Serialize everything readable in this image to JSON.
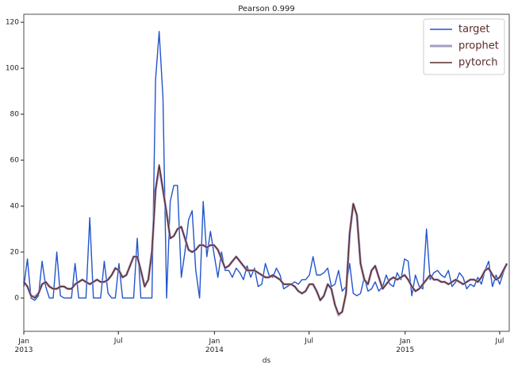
{
  "chart_data": {
    "type": "line",
    "title": "Pearson 0.999",
    "xlabel": "ds",
    "x": [
      2013.0,
      2013.019,
      2013.038,
      2013.058,
      2013.077,
      2013.096,
      2013.115,
      2013.134,
      2013.154,
      2013.173,
      2013.192,
      2013.211,
      2013.23,
      2013.25,
      2013.269,
      2013.288,
      2013.307,
      2013.326,
      2013.346,
      2013.365,
      2013.384,
      2013.403,
      2013.422,
      2013.442,
      2013.461,
      2013.48,
      2013.499,
      2013.518,
      2013.538,
      2013.557,
      2013.576,
      2013.595,
      2013.614,
      2013.634,
      2013.653,
      2013.672,
      2013.691,
      2013.71,
      2013.73,
      2013.749,
      2013.768,
      2013.787,
      2013.806,
      2013.826,
      2013.845,
      2013.864,
      2013.883,
      2013.902,
      2013.922,
      2013.941,
      2013.96,
      2013.979,
      2013.998,
      2014.018,
      2014.037,
      2014.056,
      2014.075,
      2014.094,
      2014.114,
      2014.133,
      2014.152,
      2014.171,
      2014.19,
      2014.21,
      2014.229,
      2014.248,
      2014.267,
      2014.286,
      2014.306,
      2014.325,
      2014.344,
      2014.363,
      2014.382,
      2014.402,
      2014.421,
      2014.44,
      2014.459,
      2014.478,
      2014.498,
      2014.517,
      2014.536,
      2014.555,
      2014.574,
      2014.594,
      2014.613,
      2014.632,
      2014.651,
      2014.67,
      2014.69,
      2014.709,
      2014.728,
      2014.747,
      2014.766,
      2014.786,
      2014.805,
      2014.824,
      2014.843,
      2014.862,
      2014.882,
      2014.901,
      2014.92,
      2014.939,
      2014.958,
      2014.978,
      2014.997,
      2015.016,
      2015.035,
      2015.054,
      2015.074,
      2015.093,
      2015.112,
      2015.131,
      2015.15,
      2015.17,
      2015.189,
      2015.208,
      2015.227,
      2015.246,
      2015.266,
      2015.285,
      2015.304,
      2015.323,
      2015.342,
      2015.362,
      2015.381,
      2015.4,
      2015.419,
      2015.438,
      2015.458,
      2015.477,
      2015.496,
      2015.515,
      2015.534
    ],
    "series": [
      {
        "name": "target",
        "color": "#2255cc",
        "values": [
          5,
          17,
          0,
          -1,
          1,
          16,
          5,
          0,
          0,
          20,
          1,
          0,
          0,
          0,
          15,
          0,
          0,
          0,
          35,
          0,
          0,
          0,
          16,
          2,
          0,
          0,
          15,
          0,
          0,
          0,
          0,
          26,
          0,
          0,
          0,
          0,
          95,
          116,
          87,
          0,
          42,
          49,
          49,
          9,
          20,
          34,
          38,
          12,
          0,
          42,
          18,
          29,
          19,
          9,
          20,
          12,
          12,
          9,
          13,
          11,
          8,
          14,
          9,
          13,
          5,
          6,
          15,
          10,
          9,
          13,
          10,
          4,
          5,
          6,
          7,
          6,
          8,
          8,
          10,
          18,
          10,
          10,
          11,
          13,
          5,
          6,
          12,
          3,
          5,
          15,
          2,
          1,
          2,
          9,
          3,
          4,
          7,
          3,
          5,
          10,
          6,
          5,
          11,
          8,
          17,
          16,
          1,
          10,
          5,
          4,
          30,
          8,
          11,
          12,
          10,
          9,
          12,
          5,
          7,
          11,
          9,
          4,
          6,
          5,
          9,
          6,
          12,
          16,
          5,
          10,
          6,
          11,
          15
        ]
      },
      {
        "name": "prophet",
        "color": "#a89cc4",
        "values": [
          7,
          5,
          1,
          0.5,
          2,
          6,
          7,
          5,
          4,
          4,
          5,
          5,
          4,
          4,
          6,
          7,
          8,
          7,
          6,
          7,
          8,
          7,
          7,
          8,
          10,
          13,
          12,
          9,
          10,
          14,
          18,
          18,
          12,
          5,
          8,
          20,
          47,
          57,
          47,
          37,
          26,
          27,
          30,
          31,
          26,
          21,
          20,
          21,
          23,
          23,
          22,
          23,
          23,
          21,
          17,
          13,
          14,
          16,
          18,
          16,
          14,
          12,
          12,
          12,
          11,
          10,
          9,
          9,
          10,
          9,
          8,
          6,
          6,
          6,
          5,
          3,
          2,
          3,
          6,
          6,
          3,
          -1,
          1,
          6,
          4,
          -3,
          -7.5,
          -6,
          2,
          28,
          41,
          36,
          15,
          8,
          6,
          12,
          14,
          9,
          4,
          6,
          8,
          9,
          8,
          9,
          10,
          8,
          5,
          3,
          4,
          6,
          8,
          10,
          8,
          8,
          7,
          7,
          6,
          7,
          8,
          7,
          6,
          7,
          8,
          8,
          7,
          9,
          12,
          13,
          10,
          8,
          9,
          12,
          15
        ]
      },
      {
        "name": "pytorch",
        "color": "#5a2a2a",
        "values": [
          7,
          5,
          1,
          0,
          2,
          6,
          7,
          5,
          4,
          4,
          5,
          5,
          4,
          4,
          6,
          7,
          8,
          7,
          6,
          7,
          8,
          7,
          7,
          8,
          10,
          13,
          12,
          9,
          10,
          14,
          18,
          18,
          12,
          5,
          8,
          20,
          47,
          58,
          47,
          37,
          26,
          27,
          30,
          31,
          26,
          21,
          20,
          21,
          23,
          23,
          22,
          23,
          23,
          21,
          17,
          13,
          14,
          16,
          18,
          16,
          14,
          12,
          12,
          12,
          11,
          10,
          9,
          9,
          10,
          9,
          8,
          6,
          6,
          6,
          5,
          3,
          2,
          3,
          6,
          6,
          3,
          -1,
          1,
          6,
          4,
          -3,
          -7,
          -6,
          2,
          28,
          41,
          36,
          15,
          8,
          6,
          12,
          14,
          9,
          4,
          6,
          8,
          9,
          8,
          9,
          10,
          8,
          5,
          3,
          4,
          6,
          8,
          10,
          8,
          8,
          7,
          7,
          6,
          7,
          8,
          7,
          6,
          7,
          8,
          8,
          7,
          9,
          12,
          13,
          10,
          8,
          9,
          12,
          15
        ]
      }
    ],
    "xlim": [
      2013.0,
      2015.546
    ],
    "xticks": [
      {
        "value": 2013.0,
        "label": "Jan\n2013"
      },
      {
        "value": 2013.496,
        "label": "Jul"
      },
      {
        "value": 2014.0,
        "label": "Jan\n2014"
      },
      {
        "value": 2014.496,
        "label": "Jul"
      },
      {
        "value": 2015.0,
        "label": "Jan\n2015"
      },
      {
        "value": 2015.496,
        "label": "Jul"
      }
    ],
    "ylim": [
      -14.5,
      123.5
    ],
    "yticks": [
      0,
      20,
      40,
      60,
      80,
      100,
      120
    ],
    "legend": "upper right",
    "grid": false
  }
}
